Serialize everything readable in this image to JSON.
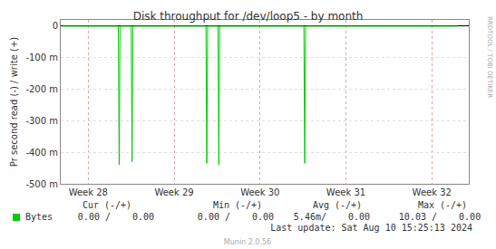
{
  "chart_data": {
    "type": "line",
    "title": "Disk throughput for /dev/loop5 - by month",
    "y_label": "Pr second read (-) / write (+)",
    "x": [
      27.7,
      28.35,
      28.36,
      28.37,
      28.5,
      28.51,
      28.52,
      29.37,
      29.38,
      29.39,
      29.51,
      29.52,
      29.53,
      30.51,
      30.52,
      30.53,
      32.3
    ],
    "series": [
      {
        "name": "Bytes",
        "color": "#00cc00",
        "values": [
          0,
          0,
          -0.44,
          0,
          0,
          -0.43,
          0,
          0,
          -0.435,
          0,
          0,
          -0.44,
          0,
          0,
          -0.435,
          0,
          0
        ],
        "stats": [
          "0.00 /    0.00",
          "0.00 /    0.00",
          "5.46m/    0.00",
          "10.03 /    0.00"
        ]
      }
    ],
    "stats_headers": [
      "Cur (-/+)",
      "Min (-/+)",
      "Avg (-/+)",
      "Max (-/+)"
    ],
    "xlim": [
      27.68,
      32.43
    ],
    "xticks": [
      {
        "value": 28,
        "label": "Week 28"
      },
      {
        "value": 29,
        "label": "Week 29"
      },
      {
        "value": 30,
        "label": "Week 30"
      },
      {
        "value": 31,
        "label": "Week 31"
      },
      {
        "value": 32,
        "label": "Week 32"
      }
    ],
    "ylim": [
      -0.5,
      0.02
    ],
    "yticks": [
      0,
      {
        "value": -0.1,
        "label": "-100 m"
      },
      {
        "value": -0.2,
        "label": "-200 m"
      },
      {
        "value": -0.3,
        "label": "-300 m"
      },
      {
        "value": -0.4,
        "label": "-400 m"
      },
      {
        "value": -0.5,
        "label": "-500 m"
      }
    ],
    "grid": true,
    "last_update": "Last update: Sat Aug 10 15:25:13 2024",
    "footer": "Munin 2.0.56",
    "watermark": "RRDTOOL / TOBI OETIKER"
  }
}
